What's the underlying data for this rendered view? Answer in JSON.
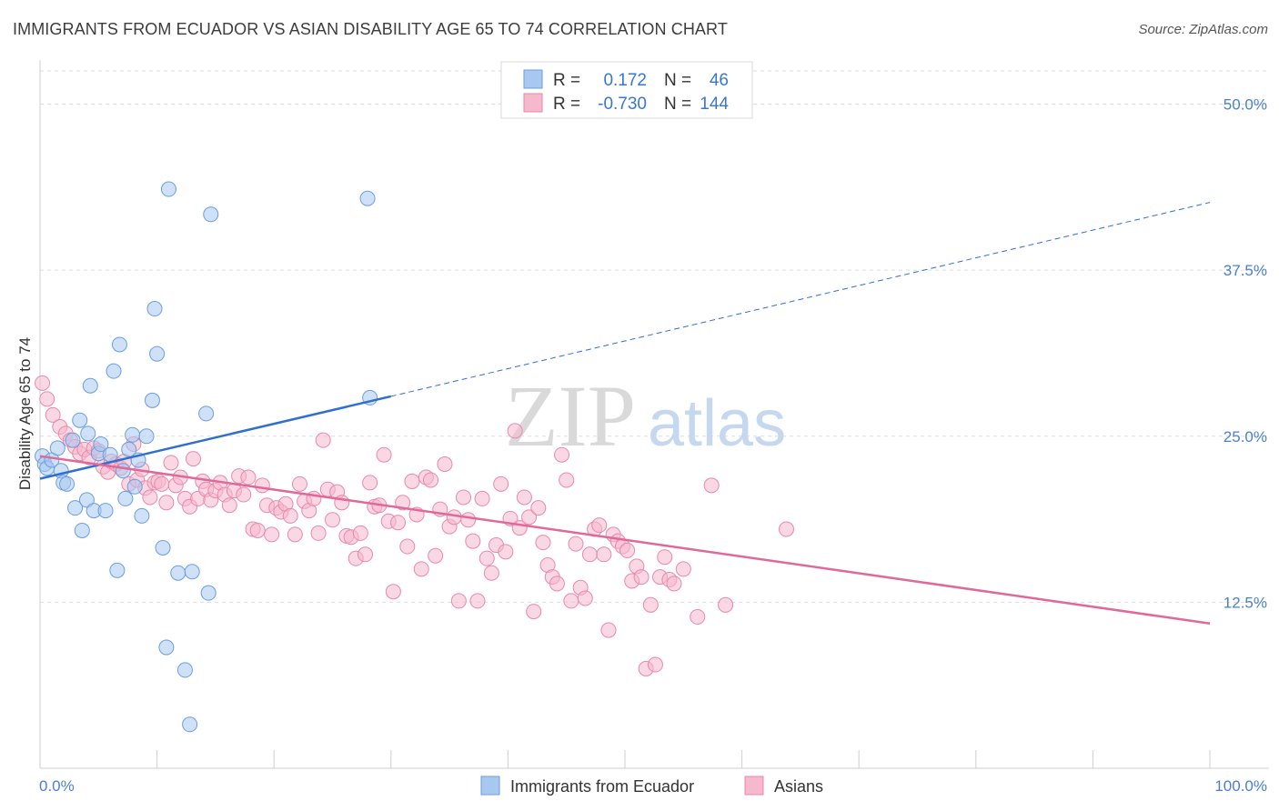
{
  "title": "IMMIGRANTS FROM ECUADOR VS ASIAN DISABILITY AGE 65 TO 74 CORRELATION CHART",
  "source": "Source: ZipAtlas.com",
  "watermark": {
    "zip": "ZIP",
    "atlas": "atlas"
  },
  "colors": {
    "blue_fill": "#a8c8f0",
    "blue_stroke": "#6a9ede",
    "blue_line": "#2f6fcf",
    "pink_fill": "#f5b8cc",
    "pink_stroke": "#e889a8",
    "pink_line": "#e0689a",
    "tick_text": "#4a7fd0",
    "grid": "#dddddd"
  },
  "legend": {
    "rows": [
      {
        "r_label": "R =",
        "r_value": "0.172",
        "n_label": "N =",
        "n_value": "46",
        "color": "blue"
      },
      {
        "r_label": "R =",
        "r_value": "-0.730",
        "n_label": "N =",
        "n_value": "144",
        "color": "pink"
      }
    ]
  },
  "chart_data": {
    "type": "scatter",
    "title": "IMMIGRANTS FROM ECUADOR VS ASIAN DISABILITY AGE 65 TO 74 CORRELATION CHART",
    "xlabel": "",
    "ylabel": "Disability Age 65 to 74",
    "xlim": [
      0,
      100
    ],
    "ylim": [
      0,
      52.5
    ],
    "x_tick_labels": [
      "0.0%",
      "100.0%"
    ],
    "y_ticks": [
      12.5,
      25.0,
      37.5,
      50.0
    ],
    "y_tick_labels": [
      "12.5%",
      "25.0%",
      "37.5%",
      "50.0%"
    ],
    "grid": true,
    "legend_position": "bottom",
    "series": [
      {
        "name": "Immigrants from Ecuador",
        "color": "blue",
        "trend": {
          "x_start": 0,
          "y_start": 21.8,
          "x_end_solid": 30,
          "y_end_solid": 28.0,
          "x_end_dashed": 100,
          "y_end_dashed": 42.6
        },
        "points": [
          [
            0.2,
            23.5
          ],
          [
            0.4,
            22.9
          ],
          [
            0.6,
            22.6
          ],
          [
            1.0,
            23.2
          ],
          [
            1.5,
            24.1
          ],
          [
            1.8,
            22.4
          ],
          [
            2.0,
            21.5
          ],
          [
            2.3,
            21.4
          ],
          [
            2.8,
            24.7
          ],
          [
            3.0,
            19.6
          ],
          [
            3.4,
            26.2
          ],
          [
            3.6,
            17.9
          ],
          [
            4.0,
            20.2
          ],
          [
            4.1,
            25.2
          ],
          [
            4.3,
            28.8
          ],
          [
            4.6,
            19.4
          ],
          [
            5.0,
            23.7
          ],
          [
            5.2,
            24.4
          ],
          [
            5.6,
            19.4
          ],
          [
            6.0,
            23.6
          ],
          [
            6.3,
            29.9
          ],
          [
            6.6,
            14.9
          ],
          [
            6.8,
            31.9
          ],
          [
            7.1,
            22.4
          ],
          [
            7.3,
            20.3
          ],
          [
            7.6,
            24.0
          ],
          [
            7.9,
            25.1
          ],
          [
            8.1,
            21.2
          ],
          [
            8.4,
            23.2
          ],
          [
            8.7,
            19.0
          ],
          [
            9.1,
            25.0
          ],
          [
            9.6,
            27.7
          ],
          [
            9.8,
            34.6
          ],
          [
            10.0,
            31.2
          ],
          [
            10.5,
            16.6
          ],
          [
            10.8,
            9.1
          ],
          [
            11.0,
            43.6
          ],
          [
            11.8,
            14.7
          ],
          [
            12.4,
            7.4
          ],
          [
            12.8,
            3.3
          ],
          [
            13.0,
            14.8
          ],
          [
            14.2,
            26.7
          ],
          [
            14.4,
            13.2
          ],
          [
            14.6,
            41.7
          ],
          [
            28.0,
            42.9
          ],
          [
            28.2,
            27.9
          ]
        ]
      },
      {
        "name": "Asians",
        "color": "pink",
        "trend": {
          "x_start": 0,
          "y_start": 23.5,
          "x_end": 100,
          "y_end": 10.9
        },
        "points": [
          [
            0.2,
            29.0
          ],
          [
            0.6,
            27.8
          ],
          [
            1.1,
            26.6
          ],
          [
            1.7,
            25.7
          ],
          [
            2.2,
            25.2
          ],
          [
            2.6,
            24.7
          ],
          [
            3.0,
            24.2
          ],
          [
            3.4,
            23.7
          ],
          [
            3.8,
            24.0
          ],
          [
            4.2,
            23.4
          ],
          [
            4.6,
            24.1
          ],
          [
            5.0,
            23.9
          ],
          [
            5.4,
            22.7
          ],
          [
            5.8,
            22.3
          ],
          [
            6.1,
            23.1
          ],
          [
            6.5,
            22.9
          ],
          [
            6.9,
            22.6
          ],
          [
            7.2,
            23.1
          ],
          [
            7.6,
            21.4
          ],
          [
            8.0,
            24.4
          ],
          [
            8.3,
            21.7
          ],
          [
            8.7,
            22.5
          ],
          [
            9.0,
            21.1
          ],
          [
            9.4,
            20.4
          ],
          [
            9.8,
            21.5
          ],
          [
            10.1,
            21.6
          ],
          [
            10.4,
            21.4
          ],
          [
            10.8,
            20.0
          ],
          [
            11.2,
            23.0
          ],
          [
            11.6,
            21.3
          ],
          [
            12.0,
            21.9
          ],
          [
            12.4,
            20.3
          ],
          [
            12.8,
            19.7
          ],
          [
            13.1,
            23.3
          ],
          [
            13.5,
            20.3
          ],
          [
            13.9,
            21.6
          ],
          [
            14.2,
            21.0
          ],
          [
            14.6,
            20.2
          ],
          [
            15.0,
            20.9
          ],
          [
            15.4,
            21.5
          ],
          [
            15.8,
            20.6
          ],
          [
            16.2,
            19.8
          ],
          [
            16.6,
            20.9
          ],
          [
            17.0,
            22.0
          ],
          [
            17.4,
            20.6
          ],
          [
            17.8,
            21.9
          ],
          [
            18.2,
            18.0
          ],
          [
            18.6,
            17.9
          ],
          [
            19.0,
            21.3
          ],
          [
            19.4,
            19.8
          ],
          [
            19.8,
            17.6
          ],
          [
            20.2,
            19.6
          ],
          [
            20.6,
            19.3
          ],
          [
            21.0,
            19.9
          ],
          [
            21.4,
            19.0
          ],
          [
            21.8,
            17.6
          ],
          [
            22.2,
            21.4
          ],
          [
            22.6,
            20.1
          ],
          [
            23.0,
            19.4
          ],
          [
            23.4,
            20.3
          ],
          [
            23.8,
            17.7
          ],
          [
            24.2,
            24.7
          ],
          [
            24.6,
            21.0
          ],
          [
            25.0,
            18.7
          ],
          [
            25.4,
            20.8
          ],
          [
            25.8,
            20.0
          ],
          [
            26.2,
            17.5
          ],
          [
            26.6,
            17.4
          ],
          [
            27.0,
            15.8
          ],
          [
            27.4,
            17.7
          ],
          [
            27.8,
            16.1
          ],
          [
            28.2,
            21.5
          ],
          [
            28.6,
            19.7
          ],
          [
            29.0,
            19.8
          ],
          [
            29.4,
            23.6
          ],
          [
            29.8,
            18.6
          ],
          [
            30.2,
            13.3
          ],
          [
            30.6,
            18.5
          ],
          [
            31.0,
            20.0
          ],
          [
            31.4,
            16.7
          ],
          [
            31.8,
            21.6
          ],
          [
            32.2,
            19.1
          ],
          [
            32.6,
            15.0
          ],
          [
            33.0,
            21.9
          ],
          [
            33.4,
            21.7
          ],
          [
            33.8,
            16.0
          ],
          [
            34.2,
            19.5
          ],
          [
            34.6,
            22.9
          ],
          [
            35.0,
            18.2
          ],
          [
            35.4,
            18.9
          ],
          [
            35.8,
            12.6
          ],
          [
            36.2,
            20.4
          ],
          [
            36.6,
            18.7
          ],
          [
            37.0,
            17.1
          ],
          [
            37.4,
            12.6
          ],
          [
            37.8,
            20.3
          ],
          [
            38.2,
            15.8
          ],
          [
            38.6,
            14.7
          ],
          [
            39.0,
            16.8
          ],
          [
            39.4,
            21.4
          ],
          [
            39.8,
            16.3
          ],
          [
            40.2,
            18.8
          ],
          [
            40.6,
            25.4
          ],
          [
            41.0,
            18.1
          ],
          [
            41.4,
            20.4
          ],
          [
            41.8,
            18.9
          ],
          [
            42.2,
            11.8
          ],
          [
            42.6,
            19.6
          ],
          [
            43.0,
            17.0
          ],
          [
            43.4,
            15.3
          ],
          [
            43.8,
            14.4
          ],
          [
            44.2,
            13.9
          ],
          [
            44.6,
            23.6
          ],
          [
            45.0,
            21.7
          ],
          [
            45.4,
            12.6
          ],
          [
            45.8,
            16.9
          ],
          [
            46.2,
            13.6
          ],
          [
            46.6,
            12.8
          ],
          [
            47.0,
            16.1
          ],
          [
            47.4,
            18.0
          ],
          [
            47.8,
            18.3
          ],
          [
            48.2,
            16.1
          ],
          [
            48.6,
            10.4
          ],
          [
            49.0,
            17.6
          ],
          [
            49.4,
            17.1
          ],
          [
            49.8,
            16.7
          ],
          [
            50.2,
            16.4
          ],
          [
            50.6,
            14.1
          ],
          [
            51.0,
            15.2
          ],
          [
            51.4,
            14.4
          ],
          [
            51.8,
            7.5
          ],
          [
            52.2,
            12.3
          ],
          [
            52.6,
            7.8
          ],
          [
            53.0,
            14.4
          ],
          [
            53.4,
            15.9
          ],
          [
            53.8,
            14.2
          ],
          [
            54.2,
            13.9
          ],
          [
            55.0,
            15.0
          ],
          [
            56.2,
            11.4
          ],
          [
            57.4,
            21.3
          ],
          [
            58.6,
            12.3
          ],
          [
            63.8,
            18.0
          ]
        ]
      }
    ]
  },
  "bottom_legend": {
    "items": [
      {
        "label": "Immigrants from Ecuador",
        "color": "blue"
      },
      {
        "label": "Asians",
        "color": "pink"
      }
    ]
  }
}
